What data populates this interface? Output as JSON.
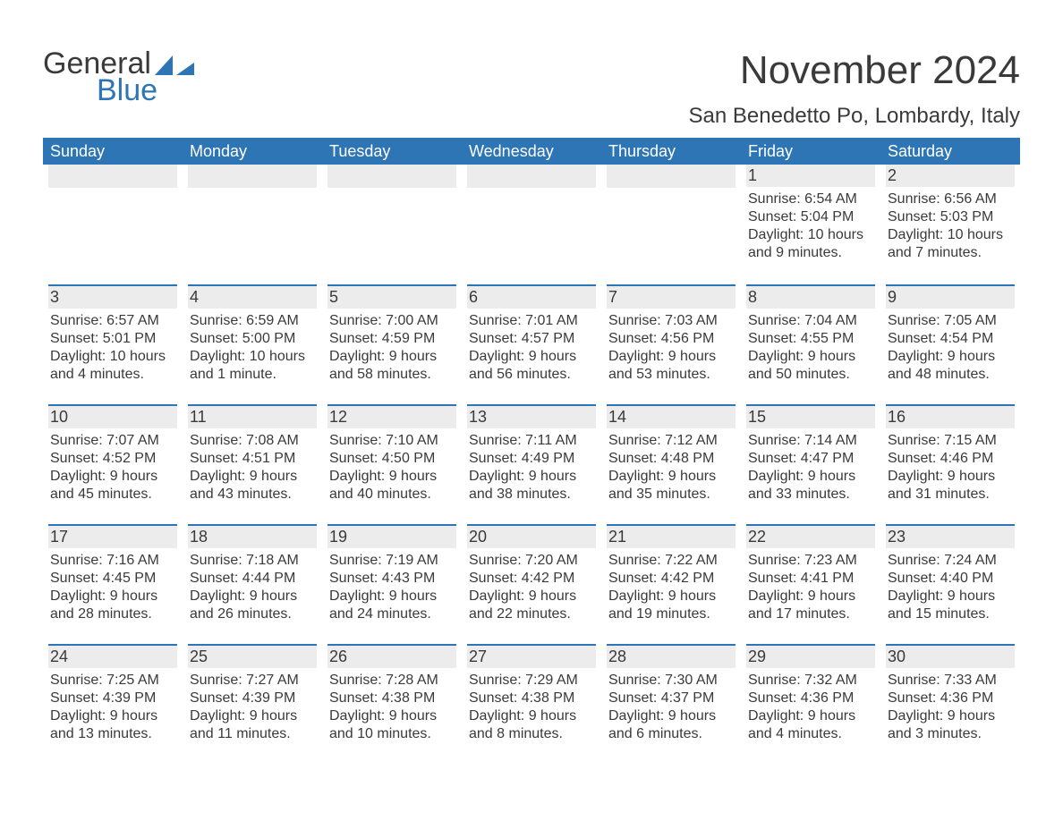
{
  "brand": {
    "word1": "General",
    "word2": "Blue",
    "icon_color": "#2d75b5",
    "text_color": "#3a3a3a"
  },
  "title": "November 2024",
  "location": "San Benedetto Po, Lombardy, Italy",
  "colors": {
    "header_bg": "#2d75b5",
    "header_fg": "#ffffff",
    "day_band_bg": "#ececec",
    "day_border": "#2d75b5",
    "text": "#3a3a3a",
    "page_bg": "#ffffff"
  },
  "day_labels": [
    "Sunday",
    "Monday",
    "Tuesday",
    "Wednesday",
    "Thursday",
    "Friday",
    "Saturday"
  ],
  "weeks": [
    [
      null,
      null,
      null,
      null,
      null,
      {
        "n": "1",
        "sunrise": "Sunrise: 6:54 AM",
        "sunset": "Sunset: 5:04 PM",
        "d1": "Daylight: 10 hours",
        "d2": "and 9 minutes."
      },
      {
        "n": "2",
        "sunrise": "Sunrise: 6:56 AM",
        "sunset": "Sunset: 5:03 PM",
        "d1": "Daylight: 10 hours",
        "d2": "and 7 minutes."
      }
    ],
    [
      {
        "n": "3",
        "sunrise": "Sunrise: 6:57 AM",
        "sunset": "Sunset: 5:01 PM",
        "d1": "Daylight: 10 hours",
        "d2": "and 4 minutes."
      },
      {
        "n": "4",
        "sunrise": "Sunrise: 6:59 AM",
        "sunset": "Sunset: 5:00 PM",
        "d1": "Daylight: 10 hours",
        "d2": "and 1 minute."
      },
      {
        "n": "5",
        "sunrise": "Sunrise: 7:00 AM",
        "sunset": "Sunset: 4:59 PM",
        "d1": "Daylight: 9 hours",
        "d2": "and 58 minutes."
      },
      {
        "n": "6",
        "sunrise": "Sunrise: 7:01 AM",
        "sunset": "Sunset: 4:57 PM",
        "d1": "Daylight: 9 hours",
        "d2": "and 56 minutes."
      },
      {
        "n": "7",
        "sunrise": "Sunrise: 7:03 AM",
        "sunset": "Sunset: 4:56 PM",
        "d1": "Daylight: 9 hours",
        "d2": "and 53 minutes."
      },
      {
        "n": "8",
        "sunrise": "Sunrise: 7:04 AM",
        "sunset": "Sunset: 4:55 PM",
        "d1": "Daylight: 9 hours",
        "d2": "and 50 minutes."
      },
      {
        "n": "9",
        "sunrise": "Sunrise: 7:05 AM",
        "sunset": "Sunset: 4:54 PM",
        "d1": "Daylight: 9 hours",
        "d2": "and 48 minutes."
      }
    ],
    [
      {
        "n": "10",
        "sunrise": "Sunrise: 7:07 AM",
        "sunset": "Sunset: 4:52 PM",
        "d1": "Daylight: 9 hours",
        "d2": "and 45 minutes."
      },
      {
        "n": "11",
        "sunrise": "Sunrise: 7:08 AM",
        "sunset": "Sunset: 4:51 PM",
        "d1": "Daylight: 9 hours",
        "d2": "and 43 minutes."
      },
      {
        "n": "12",
        "sunrise": "Sunrise: 7:10 AM",
        "sunset": "Sunset: 4:50 PM",
        "d1": "Daylight: 9 hours",
        "d2": "and 40 minutes."
      },
      {
        "n": "13",
        "sunrise": "Sunrise: 7:11 AM",
        "sunset": "Sunset: 4:49 PM",
        "d1": "Daylight: 9 hours",
        "d2": "and 38 minutes."
      },
      {
        "n": "14",
        "sunrise": "Sunrise: 7:12 AM",
        "sunset": "Sunset: 4:48 PM",
        "d1": "Daylight: 9 hours",
        "d2": "and 35 minutes."
      },
      {
        "n": "15",
        "sunrise": "Sunrise: 7:14 AM",
        "sunset": "Sunset: 4:47 PM",
        "d1": "Daylight: 9 hours",
        "d2": "and 33 minutes."
      },
      {
        "n": "16",
        "sunrise": "Sunrise: 7:15 AM",
        "sunset": "Sunset: 4:46 PM",
        "d1": "Daylight: 9 hours",
        "d2": "and 31 minutes."
      }
    ],
    [
      {
        "n": "17",
        "sunrise": "Sunrise: 7:16 AM",
        "sunset": "Sunset: 4:45 PM",
        "d1": "Daylight: 9 hours",
        "d2": "and 28 minutes."
      },
      {
        "n": "18",
        "sunrise": "Sunrise: 7:18 AM",
        "sunset": "Sunset: 4:44 PM",
        "d1": "Daylight: 9 hours",
        "d2": "and 26 minutes."
      },
      {
        "n": "19",
        "sunrise": "Sunrise: 7:19 AM",
        "sunset": "Sunset: 4:43 PM",
        "d1": "Daylight: 9 hours",
        "d2": "and 24 minutes."
      },
      {
        "n": "20",
        "sunrise": "Sunrise: 7:20 AM",
        "sunset": "Sunset: 4:42 PM",
        "d1": "Daylight: 9 hours",
        "d2": "and 22 minutes."
      },
      {
        "n": "21",
        "sunrise": "Sunrise: 7:22 AM",
        "sunset": "Sunset: 4:42 PM",
        "d1": "Daylight: 9 hours",
        "d2": "and 19 minutes."
      },
      {
        "n": "22",
        "sunrise": "Sunrise: 7:23 AM",
        "sunset": "Sunset: 4:41 PM",
        "d1": "Daylight: 9 hours",
        "d2": "and 17 minutes."
      },
      {
        "n": "23",
        "sunrise": "Sunrise: 7:24 AM",
        "sunset": "Sunset: 4:40 PM",
        "d1": "Daylight: 9 hours",
        "d2": "and 15 minutes."
      }
    ],
    [
      {
        "n": "24",
        "sunrise": "Sunrise: 7:25 AM",
        "sunset": "Sunset: 4:39 PM",
        "d1": "Daylight: 9 hours",
        "d2": "and 13 minutes."
      },
      {
        "n": "25",
        "sunrise": "Sunrise: 7:27 AM",
        "sunset": "Sunset: 4:39 PM",
        "d1": "Daylight: 9 hours",
        "d2": "and 11 minutes."
      },
      {
        "n": "26",
        "sunrise": "Sunrise: 7:28 AM",
        "sunset": "Sunset: 4:38 PM",
        "d1": "Daylight: 9 hours",
        "d2": "and 10 minutes."
      },
      {
        "n": "27",
        "sunrise": "Sunrise: 7:29 AM",
        "sunset": "Sunset: 4:38 PM",
        "d1": "Daylight: 9 hours",
        "d2": "and 8 minutes."
      },
      {
        "n": "28",
        "sunrise": "Sunrise: 7:30 AM",
        "sunset": "Sunset: 4:37 PM",
        "d1": "Daylight: 9 hours",
        "d2": "and 6 minutes."
      },
      {
        "n": "29",
        "sunrise": "Sunrise: 7:32 AM",
        "sunset": "Sunset: 4:36 PM",
        "d1": "Daylight: 9 hours",
        "d2": "and 4 minutes."
      },
      {
        "n": "30",
        "sunrise": "Sunrise: 7:33 AM",
        "sunset": "Sunset: 4:36 PM",
        "d1": "Daylight: 9 hours",
        "d2": "and 3 minutes."
      }
    ]
  ]
}
